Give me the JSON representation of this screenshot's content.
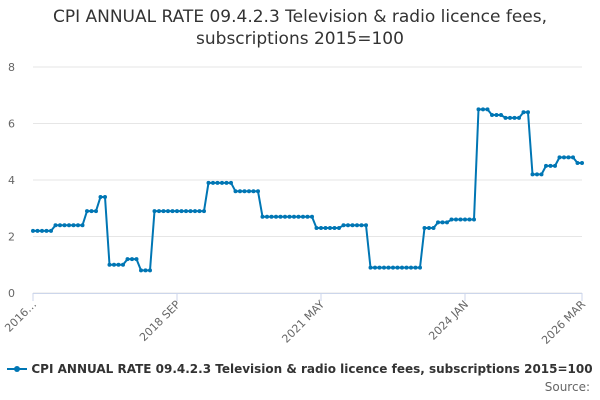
{
  "chart_data": {
    "type": "line",
    "title_lines": [
      "CPI ANNUAL RATE 09.4.2.3 Television & radio licence fees,",
      "subscriptions 2015=100"
    ],
    "y_ticks": [
      "0",
      "2",
      "4",
      "6",
      "8"
    ],
    "ylim": [
      0,
      8
    ],
    "grid": true,
    "x_tick_labels": [
      {
        "label": "2016…",
        "index": 0
      },
      {
        "label": "2018 SEP",
        "index": 32
      },
      {
        "label": "2021 MAY",
        "index": 64
      },
      {
        "label": "2024 JAN",
        "index": 96
      },
      {
        "label": "2026 MAR",
        "index": 122
      }
    ],
    "legend": "CPI ANNUAL RATE 09.4.2.3 Television & radio licence fees, subscriptions 2015=100",
    "legend_position": "bottom",
    "source_label": "Source:",
    "series": [
      {
        "name": "CPI ANNUAL RATE 09.4.2.3 Television & radio licence fees, subscriptions 2015=100",
        "color": "#0076b4",
        "values": [
          2.2,
          2.2,
          2.2,
          2.2,
          2.2,
          2.4,
          2.4,
          2.4,
          2.4,
          2.4,
          2.4,
          2.4,
          2.9,
          2.9,
          2.9,
          3.4,
          3.4,
          1.0,
          1.0,
          1.0,
          1.0,
          1.2,
          1.2,
          1.2,
          0.8,
          0.8,
          0.8,
          2.9,
          2.9,
          2.9,
          2.9,
          2.9,
          2.9,
          2.9,
          2.9,
          2.9,
          2.9,
          2.9,
          2.9,
          3.9,
          3.9,
          3.9,
          3.9,
          3.9,
          3.9,
          3.6,
          3.6,
          3.6,
          3.6,
          3.6,
          3.6,
          2.7,
          2.7,
          2.7,
          2.7,
          2.7,
          2.7,
          2.7,
          2.7,
          2.7,
          2.7,
          2.7,
          2.7,
          2.3,
          2.3,
          2.3,
          2.3,
          2.3,
          2.3,
          2.4,
          2.4,
          2.4,
          2.4,
          2.4,
          2.4,
          0.9,
          0.9,
          0.9,
          0.9,
          0.9,
          0.9,
          0.9,
          0.9,
          0.9,
          0.9,
          0.9,
          0.9,
          2.3,
          2.3,
          2.3,
          2.5,
          2.5,
          2.5,
          2.6,
          2.6,
          2.6,
          2.6,
          2.6,
          2.6,
          6.5,
          6.5,
          6.5,
          6.3,
          6.3,
          6.3,
          6.2,
          6.2,
          6.2,
          6.2,
          6.4,
          6.4,
          4.2,
          4.2,
          4.2,
          4.5,
          4.5,
          4.5,
          4.8,
          4.8,
          4.8,
          4.8,
          4.6,
          4.6
        ]
      }
    ]
  }
}
